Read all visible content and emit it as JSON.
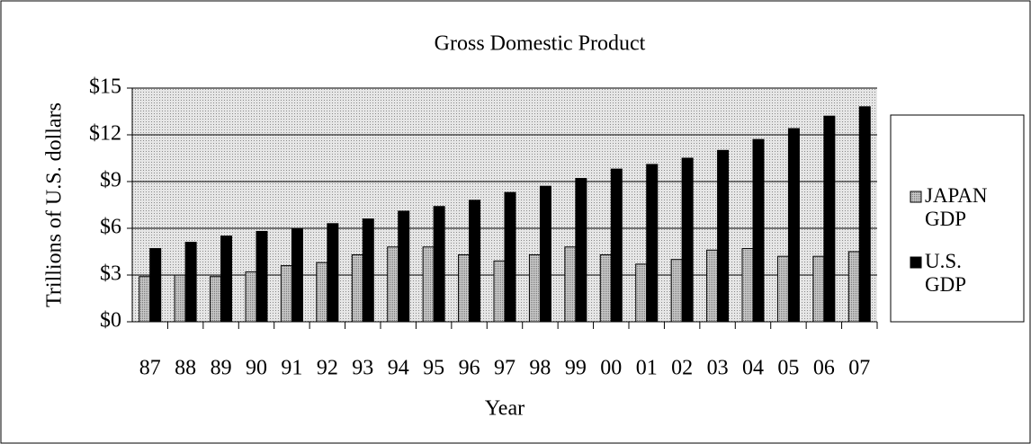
{
  "chart_data": {
    "type": "bar",
    "title": "Gross Domestic Product",
    "x_label": "Year",
    "y_label": "Trillions of U.S. dollars",
    "categories": [
      "87",
      "88",
      "89",
      "90",
      "91",
      "92",
      "93",
      "94",
      "95",
      "96",
      "97",
      "98",
      "99",
      "00",
      "01",
      "02",
      "03",
      "04",
      "05",
      "06",
      "07"
    ],
    "series": [
      {
        "name": "JAPAN GDP",
        "color": "#b8b8b8",
        "values": [
          2.9,
          3.0,
          2.9,
          3.2,
          3.6,
          3.8,
          4.3,
          4.8,
          4.8,
          4.3,
          3.9,
          4.3,
          4.8,
          4.3,
          3.7,
          4.0,
          4.6,
          4.7,
          4.2,
          4.2,
          4.5
        ]
      },
      {
        "name": "U.S. GDP",
        "color": "#000000",
        "values": [
          4.7,
          5.1,
          5.5,
          5.8,
          6.0,
          6.3,
          6.6,
          7.1,
          7.4,
          7.8,
          8.3,
          8.7,
          9.2,
          9.8,
          10.1,
          10.5,
          11.0,
          11.7,
          12.4,
          13.2,
          13.8
        ]
      }
    ],
    "ylim": [
      0,
      15
    ],
    "yticks": [
      {
        "value": 0,
        "label": "$0"
      },
      {
        "value": 3,
        "label": "$3"
      },
      {
        "value": 6,
        "label": "$6"
      },
      {
        "value": 9,
        "label": "$9"
      },
      {
        "value": 12,
        "label": "$12"
      },
      {
        "value": 15,
        "label": "$15"
      }
    ],
    "grid": true,
    "legend": "right"
  }
}
